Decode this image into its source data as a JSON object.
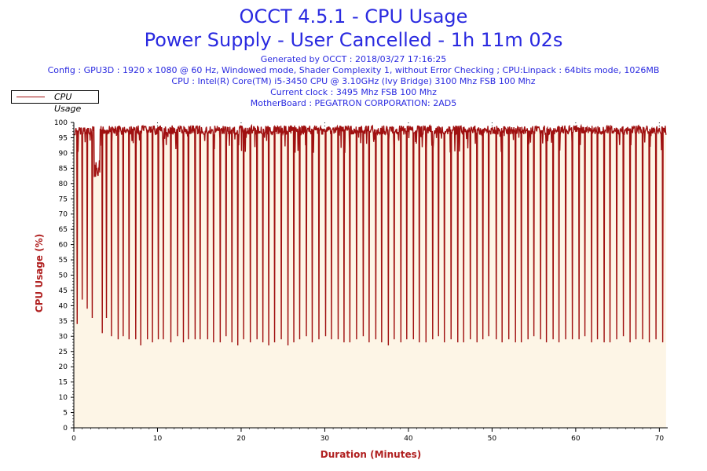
{
  "header": {
    "title": "OCCT 4.5.1 - CPU Usage",
    "subtitle": "Power Supply - User Cancelled - 1h 11m 02s",
    "info": [
      "Generated by OCCT : 2018/03/27 17:16:25",
      "Config : GPU3D : 1920 x 1080 @ 60 Hz, Windowed mode, Shader Complexity 1, without Error Checking ; CPU:Linpack : 64bits mode, 1026MB",
      "CPU : Intel(R) Core(TM) i5-3450 CPU @ 3.10GHz (Ivy Bridge) 3100 Mhz FSB 100 Mhz",
      "Current clock : 3495 Mhz FSB 100 Mhz",
      "MotherBoard : PEGATRON CORPORATION: 2AD5"
    ]
  },
  "colors": {
    "series": "#a01010",
    "fill": "#fdf5e6",
    "axis_title": "#b02020",
    "title": "#2a2ae0"
  },
  "chart_data": {
    "type": "area",
    "xlabel": "Duration (Minutes)",
    "ylabel": "CPU Usage (%)",
    "xlim": [
      0,
      71
    ],
    "ylim": [
      0,
      100
    ],
    "x_ticks": [
      0,
      10,
      20,
      30,
      40,
      50,
      60,
      70
    ],
    "y_ticks": [
      0,
      5,
      10,
      15,
      20,
      25,
      30,
      35,
      40,
      45,
      50,
      55,
      60,
      65,
      70,
      75,
      80,
      85,
      90,
      95,
      100
    ],
    "grid": "vertical dotted at major x ticks",
    "legend_position": "top-left",
    "series": [
      {
        "name": "CPU Usage",
        "baseline": 99,
        "x": [
          0.4,
          1.0,
          1.6,
          2.2,
          3.4,
          3.9,
          4.5,
          5.3,
          5.9,
          6.6,
          7.4,
          8.0,
          8.8,
          9.4,
          10.1,
          10.7,
          11.6,
          12.4,
          13.1,
          13.7,
          14.5,
          15.1,
          16.0,
          16.7,
          17.5,
          18.2,
          18.9,
          19.6,
          20.3,
          21.1,
          21.9,
          22.6,
          23.3,
          24.0,
          24.8,
          25.6,
          26.3,
          27.0,
          27.8,
          28.5,
          29.3,
          30.1,
          30.8,
          31.6,
          32.3,
          33.0,
          33.8,
          34.6,
          35.3,
          36.1,
          36.8,
          37.6,
          38.3,
          39.1,
          39.8,
          40.6,
          41.3,
          42.1,
          42.9,
          43.6,
          44.3,
          45.1,
          45.9,
          46.6,
          47.4,
          48.2,
          48.9,
          49.6,
          50.5,
          51.2,
          52.0,
          52.8,
          53.5,
          54.3,
          55.0,
          55.8,
          56.5,
          57.3,
          58.0,
          58.8,
          59.6,
          60.4,
          61.1,
          61.9,
          62.6,
          63.4,
          64.1,
          64.9,
          65.7,
          66.5,
          67.2,
          68.0,
          68.8,
          69.6,
          70.4
        ],
        "dips": [
          34,
          42,
          39,
          36,
          31,
          36,
          30,
          29,
          30,
          29,
          29,
          27,
          29,
          28,
          29,
          29,
          28,
          30,
          28,
          29,
          29,
          29,
          29,
          28,
          28,
          30,
          28,
          27,
          29,
          28,
          29,
          28,
          27,
          28,
          29,
          27,
          28,
          29,
          30,
          28,
          29,
          30,
          29,
          29,
          28,
          28,
          29,
          30,
          28,
          29,
          28,
          27,
          29,
          28,
          29,
          29,
          28,
          28,
          29,
          30,
          28,
          29,
          28,
          28,
          29,
          28,
          29,
          30,
          29,
          28,
          29,
          28,
          28,
          29,
          30,
          29,
          28,
          29,
          28,
          29,
          29,
          29,
          30,
          28,
          29,
          28,
          28,
          29,
          30,
          28,
          29,
          29,
          28,
          29,
          28
        ]
      }
    ]
  }
}
